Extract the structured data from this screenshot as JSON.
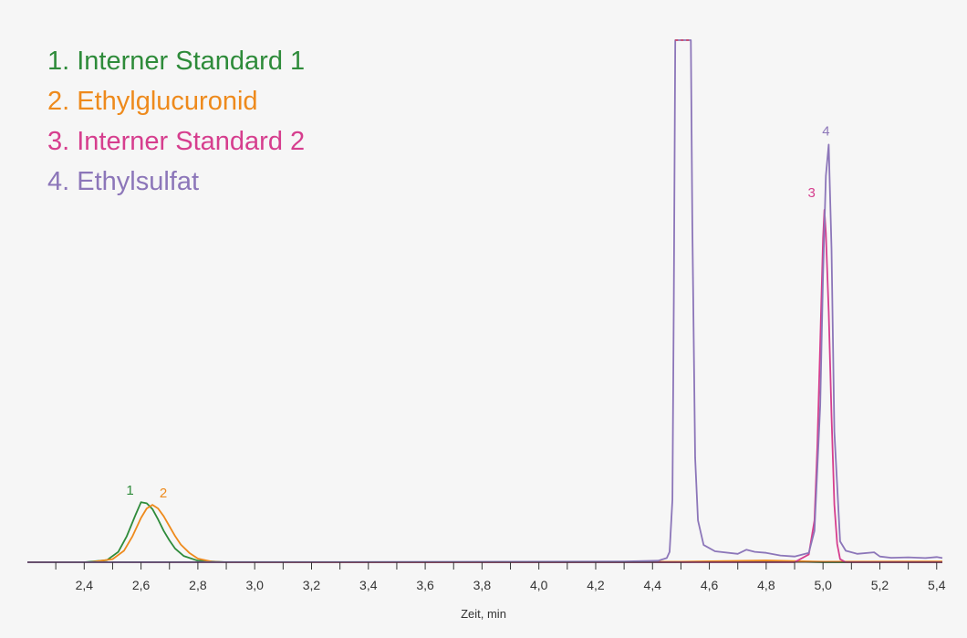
{
  "chart_data": {
    "type": "line",
    "title": "",
    "xlabel": "Zeit, min",
    "ylabel": "",
    "xlim": [
      2.2,
      5.42
    ],
    "ylim": [
      0,
      100
    ],
    "x_ticks": [
      "2,4",
      "2,6",
      "2,8",
      "3,0",
      "3,2",
      "3,4",
      "3,6",
      "3,8",
      "4,0",
      "4,2",
      "4,4",
      "4,6",
      "4,8",
      "5,0",
      "5,2",
      "5,4"
    ],
    "legend": [
      "1. Interner Standard 1",
      "2. Ethylglucuronid",
      "3. Interner Standard 2",
      "4. Ethylsulfat"
    ],
    "series": [
      {
        "name": "1. Interner Standard 1",
        "color": "#2e8b3a",
        "peak_label": "1",
        "points": [
          [
            2.2,
            0
          ],
          [
            2.4,
            0
          ],
          [
            2.48,
            0.4
          ],
          [
            2.52,
            2
          ],
          [
            2.55,
            5
          ],
          [
            2.58,
            9
          ],
          [
            2.6,
            11.5
          ],
          [
            2.62,
            11.3
          ],
          [
            2.64,
            10.2
          ],
          [
            2.66,
            8.2
          ],
          [
            2.68,
            6
          ],
          [
            2.7,
            4.2
          ],
          [
            2.72,
            2.6
          ],
          [
            2.75,
            1.2
          ],
          [
            2.8,
            0.3
          ],
          [
            2.9,
            0
          ],
          [
            4.4,
            0
          ],
          [
            4.48,
            0
          ],
          [
            4.75,
            0.25
          ],
          [
            5.0,
            0
          ],
          [
            5.42,
            0
          ]
        ]
      },
      {
        "name": "2. Ethylglucuronid",
        "color": "#ee8a1c",
        "peak_label": "2",
        "points": [
          [
            2.2,
            0
          ],
          [
            2.42,
            0
          ],
          [
            2.5,
            0.6
          ],
          [
            2.54,
            2.2
          ],
          [
            2.57,
            5
          ],
          [
            2.6,
            8.5
          ],
          [
            2.62,
            10.3
          ],
          [
            2.64,
            11
          ],
          [
            2.66,
            10.3
          ],
          [
            2.68,
            8.8
          ],
          [
            2.7,
            6.9
          ],
          [
            2.72,
            5
          ],
          [
            2.74,
            3.4
          ],
          [
            2.77,
            1.8
          ],
          [
            2.8,
            0.7
          ],
          [
            2.85,
            0.1
          ],
          [
            2.9,
            0
          ],
          [
            3.5,
            0
          ],
          [
            4.5,
            0.1
          ],
          [
            4.8,
            0.35
          ],
          [
            5.0,
            0.1
          ],
          [
            5.42,
            0.15
          ]
        ]
      },
      {
        "name": "3. Interner Standard 2",
        "color": "#d63e8e",
        "peak_label": "3",
        "points": [
          [
            2.2,
            0
          ],
          [
            3.0,
            0
          ],
          [
            4.4,
            0
          ],
          [
            4.9,
            0
          ],
          [
            4.95,
            1.5
          ],
          [
            4.97,
            8
          ],
          [
            4.98,
            22
          ],
          [
            4.99,
            42
          ],
          [
            5.0,
            62
          ],
          [
            5.005,
            67.5
          ],
          [
            5.01,
            63
          ],
          [
            5.02,
            48
          ],
          [
            5.03,
            28
          ],
          [
            5.04,
            11
          ],
          [
            5.05,
            3.5
          ],
          [
            5.06,
            0.6
          ],
          [
            5.08,
            0
          ],
          [
            5.42,
            0
          ]
        ]
      },
      {
        "name": "4. Ethylsulfat",
        "color": "#8c76b9",
        "peak_label": "4",
        "clipped_top": true,
        "points": [
          [
            2.2,
            0
          ],
          [
            3.5,
            0.05
          ],
          [
            4.3,
            0.15
          ],
          [
            4.42,
            0.3
          ],
          [
            4.45,
            0.8
          ],
          [
            4.46,
            2
          ],
          [
            4.47,
            12
          ],
          [
            4.475,
            50
          ],
          [
            4.48,
            100
          ],
          [
            4.535,
            100
          ],
          [
            4.54,
            65
          ],
          [
            4.55,
            20
          ],
          [
            4.56,
            8
          ],
          [
            4.58,
            3.3
          ],
          [
            4.62,
            2.1
          ],
          [
            4.7,
            1.6
          ],
          [
            4.73,
            2.4
          ],
          [
            4.76,
            2
          ],
          [
            4.8,
            1.8
          ],
          [
            4.85,
            1.3
          ],
          [
            4.9,
            1.1
          ],
          [
            4.95,
            1.8
          ],
          [
            4.97,
            6
          ],
          [
            4.99,
            30
          ],
          [
            5.0,
            55
          ],
          [
            5.01,
            74
          ],
          [
            5.02,
            80
          ],
          [
            5.03,
            60
          ],
          [
            5.04,
            25
          ],
          [
            5.06,
            4
          ],
          [
            5.08,
            2.2
          ],
          [
            5.12,
            1.6
          ],
          [
            5.18,
            1.9
          ],
          [
            5.2,
            1.1
          ],
          [
            5.24,
            0.85
          ],
          [
            5.3,
            0.95
          ],
          [
            5.36,
            0.8
          ],
          [
            5.4,
            1
          ],
          [
            5.42,
            0.8
          ]
        ]
      }
    ]
  }
}
